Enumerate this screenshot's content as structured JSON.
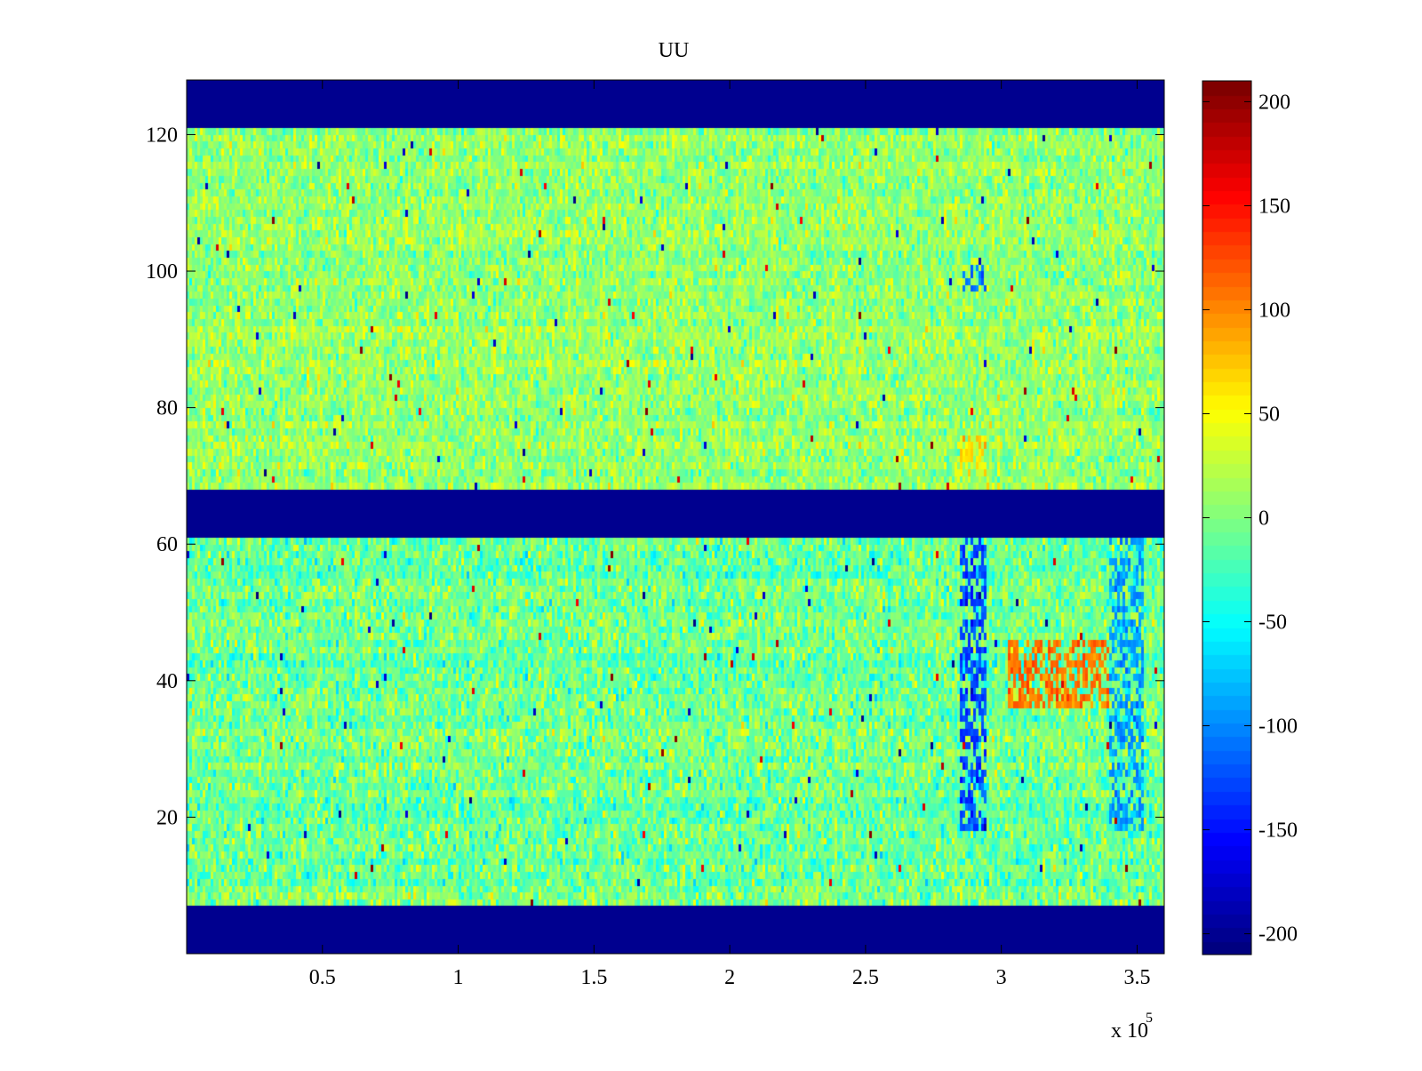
{
  "chart_data": {
    "type": "heatmap",
    "title": "UU",
    "xlabel": "",
    "ylabel": "",
    "x_range": [
      0,
      360000
    ],
    "y_range": [
      0,
      128
    ],
    "x_ticks": [
      50000,
      100000,
      150000,
      200000,
      250000,
      300000,
      350000
    ],
    "x_tick_labels": [
      "0.5",
      "1",
      "1.5",
      "2",
      "2.5",
      "3",
      "3.5"
    ],
    "x_exponent_label": "x 10",
    "x_exponent_power": "5",
    "y_ticks": [
      20,
      40,
      60,
      80,
      100,
      120
    ],
    "y_tick_labels": [
      "20",
      "40",
      "60",
      "80",
      "100",
      "120"
    ],
    "colormap": "jet",
    "color_range": [
      -210,
      210
    ],
    "colorbar_ticks": [
      200,
      150,
      100,
      50,
      0,
      -50,
      -100,
      -150,
      -200
    ],
    "colorbar_tick_labels": [
      "200",
      "150",
      "100",
      "50",
      "0",
      "-50",
      "-100",
      "-150",
      "-200"
    ],
    "fill_value": -210,
    "data_bands": [
      {
        "y_start": 7,
        "y_end": 61,
        "mean": -5,
        "spread": 35
      },
      {
        "y_start": 68,
        "y_end": 121,
        "mean": 10,
        "spread": 30
      }
    ],
    "empty_bands": [
      {
        "y_start": 0,
        "y_end": 7
      },
      {
        "y_start": 61,
        "y_end": 68
      },
      {
        "y_start": 121,
        "y_end": 128
      }
    ],
    "notable_features": [
      {
        "x_start": 285000,
        "x_end": 295000,
        "y_start": 18,
        "y_end": 61,
        "value": -130
      },
      {
        "x_start": 302000,
        "x_end": 340000,
        "y_start": 36,
        "y_end": 46,
        "value": 110
      },
      {
        "x_start": 340000,
        "x_end": 352000,
        "y_start": 18,
        "y_end": 61,
        "value": -90
      },
      {
        "x_start": 285000,
        "x_end": 295000,
        "y_start": 97,
        "y_end": 101,
        "value": -110
      },
      {
        "x_start": 285000,
        "x_end": 295000,
        "y_start": 70,
        "y_end": 76,
        "value": 70
      }
    ]
  }
}
